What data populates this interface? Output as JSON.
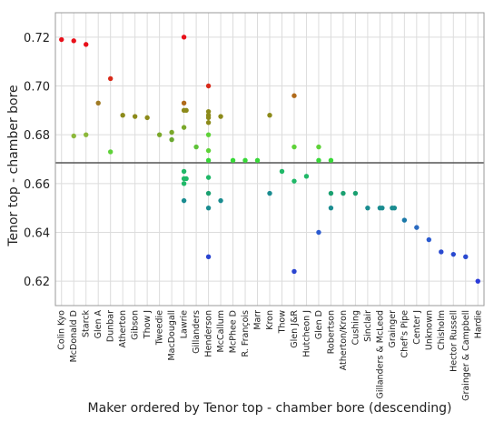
{
  "chart_data": {
    "type": "scatter",
    "title": "",
    "xlabel": "Maker ordered by Tenor top - chamber bore (descending)",
    "ylabel": "Tenor top - chamber bore",
    "ylim": [
      0.61,
      0.73
    ],
    "yticks": [
      0.62,
      0.64,
      0.66,
      0.68,
      0.7,
      0.72
    ],
    "ytick_labels": [
      "0.62",
      "0.64",
      "0.66",
      "0.68",
      "0.70",
      "0.72"
    ],
    "reference_line": 0.6685,
    "grid": true,
    "categories": [
      "Colin Kyo",
      "McDonald D",
      "Starck",
      "Glen A",
      "Dunbar",
      "Atherton",
      "Gibson",
      "Thow J",
      "Tweedie",
      "MacDougall",
      "Lawrie",
      "Gillanders",
      "Henderson",
      "McCallum",
      "McPhee D",
      "R. François",
      "Marr",
      "Kron",
      "Thow",
      "Glen J&R",
      "Hutcheon J",
      "Glen D",
      "Robertson",
      "Atherton/Kron",
      "Cushing",
      "Sinclair",
      "Gillanders & McLeod",
      "Grainger",
      "Chef's Pipe",
      "Center J",
      "Unknown",
      "Chisholm",
      "Hector Russell",
      "Grainger & Campbell",
      "Hardie"
    ],
    "points": [
      {
        "x": "Colin Kyo",
        "y": 0.719,
        "color": "#e8101a"
      },
      {
        "x": "McDonald D",
        "y": 0.7185,
        "color": "#e8101a"
      },
      {
        "x": "McDonald D",
        "y": 0.6795,
        "color": "#8cb83a"
      },
      {
        "x": "Starck",
        "y": 0.717,
        "color": "#e8101a"
      },
      {
        "x": "Starck",
        "y": 0.68,
        "color": "#8cb83a"
      },
      {
        "x": "Glen A",
        "y": 0.693,
        "color": "#a07a24"
      },
      {
        "x": "Dunbar",
        "y": 0.703,
        "color": "#d82a1a"
      },
      {
        "x": "Dunbar",
        "y": 0.673,
        "color": "#5ed238"
      },
      {
        "x": "Atherton",
        "y": 0.688,
        "color": "#8c8a1a"
      },
      {
        "x": "Gibson",
        "y": 0.6875,
        "color": "#8c8a1a"
      },
      {
        "x": "Thow J",
        "y": 0.687,
        "color": "#8c8a1a"
      },
      {
        "x": "Tweedie",
        "y": 0.68,
        "color": "#7aa82a"
      },
      {
        "x": "MacDougall",
        "y": 0.681,
        "color": "#7aa82a"
      },
      {
        "x": "MacDougall",
        "y": 0.678,
        "color": "#6aa830"
      },
      {
        "x": "Lawrie",
        "y": 0.72,
        "color": "#e8101a"
      },
      {
        "x": "Lawrie",
        "y": 0.693,
        "color": "#b06a1a"
      },
      {
        "x": "Lawrie",
        "y": 0.69,
        "color": "#8c8a1a"
      },
      {
        "x": "Lawrie",
        "y": 0.69,
        "color": "#8c8a1a"
      },
      {
        "x": "Lawrie",
        "y": 0.683,
        "color": "#7aa82a"
      },
      {
        "x": "Lawrie",
        "y": 0.665,
        "color": "#20b868"
      },
      {
        "x": "Lawrie",
        "y": 0.662,
        "color": "#20b868"
      },
      {
        "x": "Lawrie",
        "y": 0.662,
        "color": "#20b868"
      },
      {
        "x": "Lawrie",
        "y": 0.66,
        "color": "#20b868"
      },
      {
        "x": "Lawrie",
        "y": 0.653,
        "color": "#1a8c90"
      },
      {
        "x": "Gillanders",
        "y": 0.675,
        "color": "#5ec238"
      },
      {
        "x": "Henderson",
        "y": 0.7,
        "color": "#d82a1a"
      },
      {
        "x": "Henderson",
        "y": 0.6895,
        "color": "#8c8a1a"
      },
      {
        "x": "Henderson",
        "y": 0.688,
        "color": "#8c8a1a"
      },
      {
        "x": "Henderson",
        "y": 0.687,
        "color": "#8c8a1a"
      },
      {
        "x": "Henderson",
        "y": 0.685,
        "color": "#8c8a1a"
      },
      {
        "x": "Henderson",
        "y": 0.68,
        "color": "#5ed238"
      },
      {
        "x": "Henderson",
        "y": 0.6735,
        "color": "#5ed238"
      },
      {
        "x": "Henderson",
        "y": 0.6695,
        "color": "#38d838"
      },
      {
        "x": "Henderson",
        "y": 0.6625,
        "color": "#20b868"
      },
      {
        "x": "Henderson",
        "y": 0.656,
        "color": "#1aa070"
      },
      {
        "x": "Henderson",
        "y": 0.65,
        "color": "#1a8c90"
      },
      {
        "x": "Henderson",
        "y": 0.63,
        "color": "#2a44d0"
      },
      {
        "x": "McCallum",
        "y": 0.6875,
        "color": "#8c8a1a"
      },
      {
        "x": "McCallum",
        "y": 0.653,
        "color": "#1a8c90"
      },
      {
        "x": "McPhee D",
        "y": 0.6695,
        "color": "#38d838"
      },
      {
        "x": "R. François",
        "y": 0.6695,
        "color": "#38d838"
      },
      {
        "x": "Marr",
        "y": 0.6695,
        "color": "#38d838"
      },
      {
        "x": "Kron",
        "y": 0.688,
        "color": "#8c8a1a"
      },
      {
        "x": "Kron",
        "y": 0.656,
        "color": "#1a8c90"
      },
      {
        "x": "Thow",
        "y": 0.665,
        "color": "#20b868"
      },
      {
        "x": "Glen J&R",
        "y": 0.696,
        "color": "#b06a1a"
      },
      {
        "x": "Glen J&R",
        "y": 0.675,
        "color": "#5ed238"
      },
      {
        "x": "Glen J&R",
        "y": 0.661,
        "color": "#20b868"
      },
      {
        "x": "Glen J&R",
        "y": 0.624,
        "color": "#2a44d0"
      },
      {
        "x": "Hutcheon J",
        "y": 0.663,
        "color": "#20b868"
      },
      {
        "x": "Glen D",
        "y": 0.675,
        "color": "#5ed238"
      },
      {
        "x": "Glen D",
        "y": 0.6695,
        "color": "#38d838"
      },
      {
        "x": "Glen D",
        "y": 0.64,
        "color": "#2a5ad0"
      },
      {
        "x": "Robertson",
        "y": 0.6695,
        "color": "#38d838"
      },
      {
        "x": "Robertson",
        "y": 0.656,
        "color": "#1aa070"
      },
      {
        "x": "Robertson",
        "y": 0.65,
        "color": "#1a8c90"
      },
      {
        "x": "Atherton/Kron",
        "y": 0.656,
        "color": "#1aa070"
      },
      {
        "x": "Cushing",
        "y": 0.656,
        "color": "#1aa070"
      },
      {
        "x": "Sinclair",
        "y": 0.65,
        "color": "#1a8c90"
      },
      {
        "x": "Gillanders & McLeod",
        "y": 0.65,
        "color": "#1a8c90"
      },
      {
        "x": "Gillanders & McLeod",
        "y": 0.65,
        "color": "#1a8c90"
      },
      {
        "x": "Grainger",
        "y": 0.65,
        "color": "#1a8c90"
      },
      {
        "x": "Grainger",
        "y": 0.65,
        "color": "#1a8c90"
      },
      {
        "x": "Chef's Pipe",
        "y": 0.645,
        "color": "#1a78a8"
      },
      {
        "x": "Center J",
        "y": 0.642,
        "color": "#2a6ac0"
      },
      {
        "x": "Unknown",
        "y": 0.637,
        "color": "#2a5ad0"
      },
      {
        "x": "Chisholm",
        "y": 0.632,
        "color": "#2a4ad0"
      },
      {
        "x": "Hector Russell",
        "y": 0.631,
        "color": "#2a4ad0"
      },
      {
        "x": "Grainger & Campbell",
        "y": 0.63,
        "color": "#2a4ad0"
      },
      {
        "x": "Hardie",
        "y": 0.62,
        "color": "#2a3ad8"
      }
    ]
  },
  "colors": {
    "reference_line": "#555555",
    "grid": "#dcdcdc",
    "frame": "#9a9a9a"
  }
}
